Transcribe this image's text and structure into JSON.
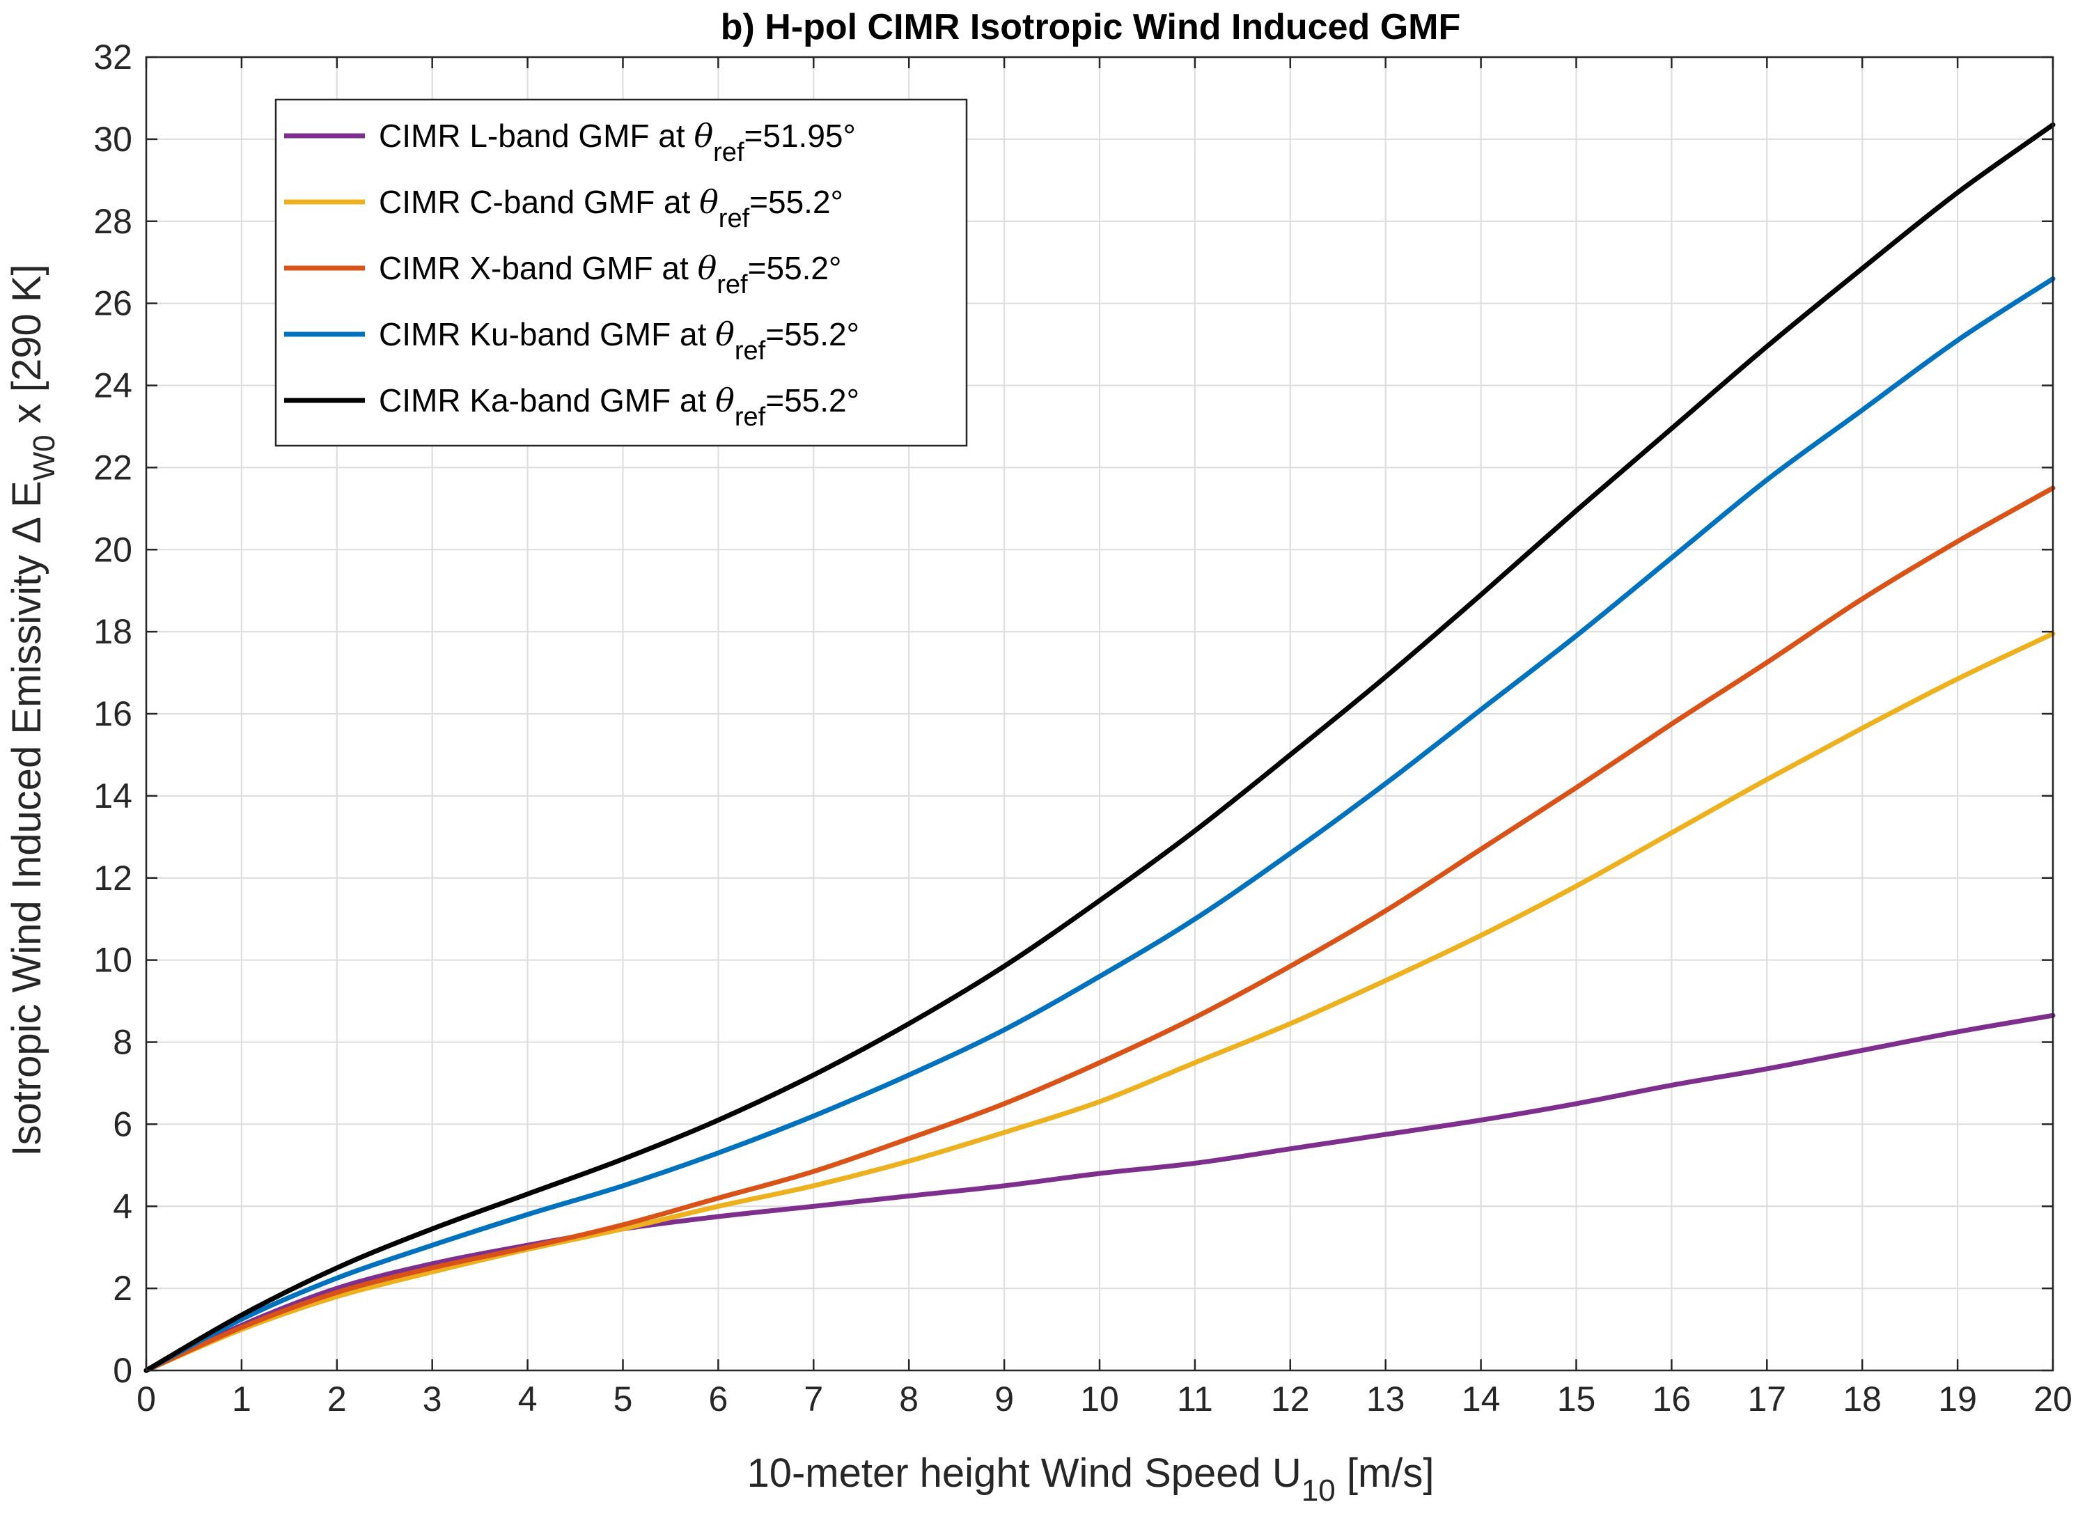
{
  "chart_data": {
    "type": "line",
    "title": "b) H-pol CIMR Isotropic Wind Induced GMF",
    "xlabel": {
      "main": "10-meter height Wind Speed U",
      "sub": "10",
      "tail": " [m/s]"
    },
    "ylabel": {
      "main": "Isotropic Wind Induced Emissivity  Δ E",
      "sub": "W0",
      "tail": " x [290 K]"
    },
    "xlim": [
      0,
      20
    ],
    "ylim": [
      0,
      32
    ],
    "xticks": [
      "0",
      "1",
      "2",
      "3",
      "4",
      "5",
      "6",
      "7",
      "8",
      "9",
      "10",
      "11",
      "12",
      "13",
      "14",
      "15",
      "16",
      "17",
      "18",
      "19",
      "20"
    ],
    "yticks": [
      "0",
      "2",
      "4",
      "6",
      "8",
      "10",
      "12",
      "14",
      "16",
      "18",
      "20",
      "22",
      "24",
      "26",
      "28",
      "30",
      "32"
    ],
    "grid": true,
    "legend_position": "top-left",
    "x": [
      0,
      1,
      2,
      3,
      4,
      5,
      6,
      7,
      8,
      9,
      10,
      11,
      12,
      13,
      14,
      15,
      16,
      17,
      18,
      19,
      20
    ],
    "series": [
      {
        "name_prefix": "CIMR L-band GMF at ",
        "name_symbol": "θ",
        "name_sub": "ref",
        "name_suffix": "=51.95°",
        "color": "#7E2F8E",
        "values": [
          0,
          1.1,
          2.0,
          2.6,
          3.05,
          3.45,
          3.75,
          4.0,
          4.25,
          4.5,
          4.8,
          5.05,
          5.4,
          5.75,
          6.1,
          6.5,
          6.95,
          7.35,
          7.8,
          8.25,
          8.65
        ]
      },
      {
        "name_prefix": "CIMR C-band GMF at ",
        "name_symbol": "θ",
        "name_sub": "ref",
        "name_suffix": "=55.2°",
        "color": "#EDB120",
        "values": [
          0,
          1.0,
          1.8,
          2.4,
          2.95,
          3.45,
          4.0,
          4.5,
          5.1,
          5.8,
          6.55,
          7.5,
          8.45,
          9.5,
          10.6,
          11.8,
          13.1,
          14.4,
          15.65,
          16.85,
          17.95
        ]
      },
      {
        "name_prefix": "CIMR X-band GMF at ",
        "name_symbol": "θ",
        "name_sub": "ref",
        "name_suffix": "=55.2°",
        "color": "#D95319",
        "values": [
          0,
          1.05,
          1.9,
          2.5,
          3.0,
          3.55,
          4.2,
          4.85,
          5.65,
          6.5,
          7.5,
          8.6,
          9.85,
          11.2,
          12.7,
          14.2,
          15.75,
          17.25,
          18.8,
          20.2,
          21.5
        ]
      },
      {
        "name_prefix": "CIMR Ku-band GMF at ",
        "name_symbol": "θ",
        "name_sub": "ref",
        "name_suffix": "=55.2°",
        "color": "#0072BD",
        "values": [
          0,
          1.25,
          2.25,
          3.05,
          3.8,
          4.5,
          5.3,
          6.2,
          7.2,
          8.3,
          9.6,
          11.0,
          12.6,
          14.3,
          16.1,
          17.9,
          19.8,
          21.7,
          23.4,
          25.1,
          26.6
        ]
      },
      {
        "name_prefix": "CIMR Ka-band GMF at ",
        "name_symbol": "θ",
        "name_sub": "ref",
        "name_suffix": "=55.2°",
        "color": "#000000",
        "values": [
          0,
          1.35,
          2.5,
          3.45,
          4.3,
          5.15,
          6.1,
          7.2,
          8.45,
          9.85,
          11.45,
          13.15,
          15.0,
          16.9,
          18.9,
          20.95,
          22.95,
          24.95,
          26.85,
          28.7,
          30.35
        ]
      }
    ]
  }
}
